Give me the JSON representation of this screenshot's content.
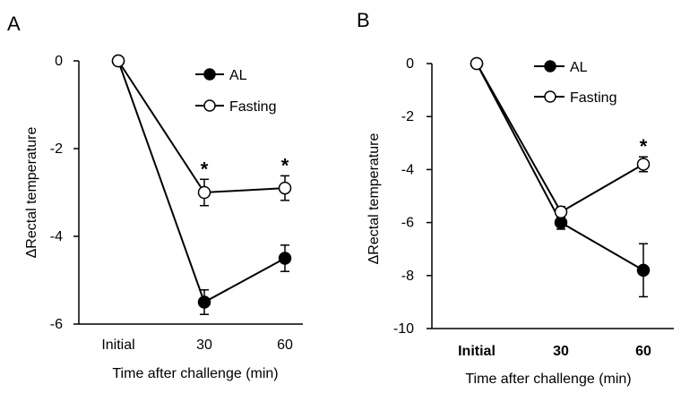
{
  "chart_data": [
    {
      "panel": "A",
      "type": "line",
      "categories": [
        "Initial",
        "30",
        "60"
      ],
      "xlabel": "Time after challenge (min)",
      "ylabel": "ΔRectal temperature",
      "ylim": [
        -6,
        0
      ],
      "yticks": [
        "0",
        "-2",
        "-4",
        "-6"
      ],
      "series": [
        {
          "name": "AL",
          "marker": "filled-circle",
          "values": [
            0,
            -5.5,
            -4.5
          ],
          "errors": [
            0,
            0.28,
            0.3
          ]
        },
        {
          "name": "Fasting",
          "marker": "open-circle",
          "values": [
            0,
            -3.0,
            -2.9
          ],
          "errors": [
            0,
            0.3,
            0.28
          ]
        }
      ],
      "significance": [
        {
          "category": "30",
          "label": "*"
        },
        {
          "category": "60",
          "label": "*"
        }
      ],
      "legend_position": "top-right",
      "grid": false
    },
    {
      "panel": "B",
      "type": "line",
      "categories": [
        "Initial",
        "30",
        "60"
      ],
      "xlabel": "Time after challenge (min)",
      "ylabel": "ΔRectal temperature",
      "ylim": [
        -10,
        0
      ],
      "yticks": [
        "0",
        "-2",
        "-4",
        "-6",
        "-8",
        "-10"
      ],
      "series": [
        {
          "name": "AL",
          "marker": "filled-circle",
          "values": [
            0,
            -6.0,
            -7.8
          ],
          "errors": [
            0,
            0.25,
            1.0
          ]
        },
        {
          "name": "Fasting",
          "marker": "open-circle",
          "values": [
            0,
            -5.6,
            -3.8
          ],
          "errors": [
            0,
            0.2,
            0.28
          ]
        }
      ],
      "significance": [
        {
          "category": "60",
          "label": "*"
        }
      ],
      "legend_position": "top-right",
      "grid": false
    }
  ]
}
